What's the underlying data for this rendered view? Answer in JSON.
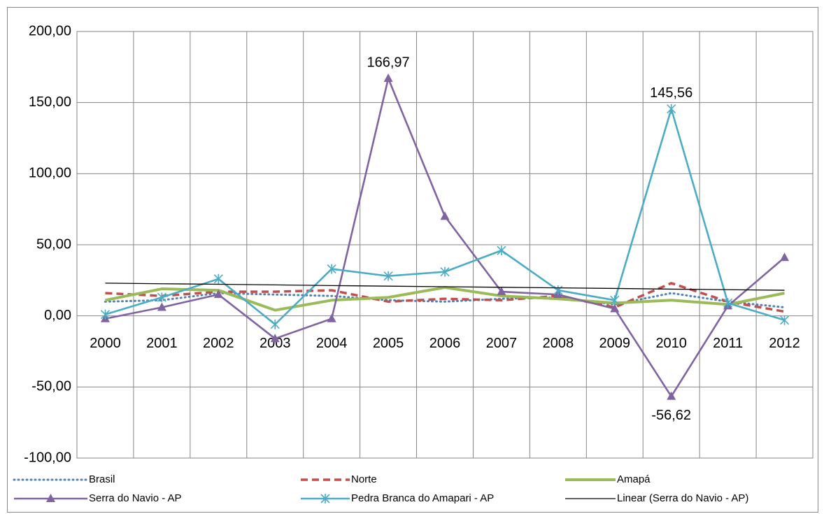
{
  "chart_data": {
    "type": "line",
    "categories": [
      "2000",
      "2001",
      "2002",
      "2003",
      "2004",
      "2005",
      "2006",
      "2007",
      "2008",
      "2009",
      "2010",
      "2011",
      "2012"
    ],
    "ylim": [
      -100,
      200
    ],
    "yticks": [
      {
        "value": -100,
        "label": "-100,00"
      },
      {
        "value": -50,
        "label": "-50,00"
      },
      {
        "value": 0,
        "label": "0,00"
      },
      {
        "value": 50,
        "label": "50,00"
      },
      {
        "value": 100,
        "label": "100,00"
      },
      {
        "value": 150,
        "label": "150,00"
      },
      {
        "value": 200,
        "label": "200,00"
      }
    ],
    "grid": true,
    "legend": "bottom",
    "series": [
      {
        "name": "Brasil",
        "color": "#4f81bd",
        "dash": "dotted",
        "values": [
          10,
          11,
          16,
          15,
          14,
          11,
          10,
          12,
          13,
          8,
          16,
          10,
          6
        ]
      },
      {
        "name": "Norte",
        "color": "#c0504d",
        "dash": "dashed",
        "values": [
          16,
          14,
          17,
          17,
          18,
          10,
          12,
          11,
          14,
          6,
          23,
          10,
          3
        ]
      },
      {
        "name": "Amapá",
        "color": "#9bbb59",
        "values": [
          11,
          19,
          18,
          4,
          11,
          13,
          20,
          14,
          12,
          9,
          11,
          8,
          16
        ]
      },
      {
        "name": "Serra do Navio - AP",
        "color": "#8064a2",
        "marker": "triangle",
        "values": [
          -2,
          6,
          15,
          -16,
          -2,
          166.97,
          70,
          17,
          15,
          5,
          -56.62,
          7,
          41
        ],
        "value_labels": [
          null,
          null,
          null,
          null,
          null,
          "166,97",
          null,
          null,
          null,
          null,
          "-56,62",
          null,
          null
        ]
      },
      {
        "name": "Pedra Branca do Amapari - AP",
        "color": "#4bacc6",
        "marker": "asterisk",
        "values": [
          1,
          13,
          26,
          -6,
          33,
          28,
          31,
          46,
          18,
          11,
          145.56,
          9,
          -3
        ],
        "value_labels": [
          null,
          null,
          null,
          null,
          null,
          null,
          null,
          null,
          null,
          null,
          "145,56",
          null,
          null
        ]
      },
      {
        "name": "Linear (Serra do Navio - AP)",
        "color": "#000000",
        "thin": true,
        "values": [
          23,
          22.6,
          22.2,
          21.8,
          21.3,
          20.9,
          20.5,
          20.1,
          19.7,
          19.3,
          18.8,
          18.4,
          18
        ]
      }
    ]
  }
}
